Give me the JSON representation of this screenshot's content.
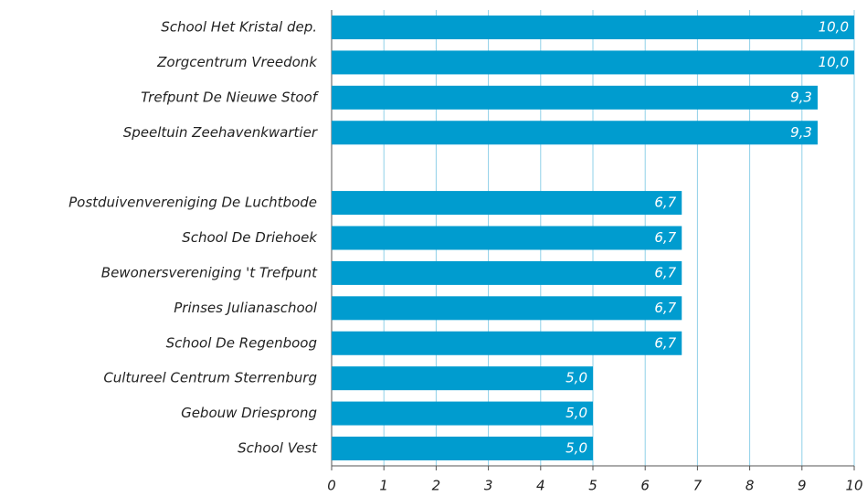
{
  "chart_data": {
    "type": "barh",
    "categories": [
      "School Het Kristal dep.",
      "Zorgcentrum Vreedonk",
      "Trefpunt De Nieuwe Stoof",
      "Speeltuin Zeehavenkwartier",
      null,
      "Postduivenvereniging De Luchtbode",
      "School De Driehoek",
      "Bewonersvereniging 't Trefpunt",
      "Prinses Julianaschool",
      "School De Regenboog",
      "Cultureel Centrum Sterrenburg",
      "Gebouw Driesprong",
      "School Vest"
    ],
    "values": [
      10,
      10,
      9.3,
      9.3,
      null,
      6.7,
      6.7,
      6.7,
      6.7,
      6.7,
      5,
      5,
      5
    ],
    "value_labels": [
      "10,0",
      "10,0",
      "9,3",
      "9,3",
      null,
      "6,7",
      "6,7",
      "6,7",
      "6,7",
      "6,7",
      "5,0",
      "5,0",
      "5,0"
    ],
    "color": "#009ccf",
    "xlim": [
      0,
      10
    ],
    "xticks": [
      0,
      1,
      2,
      3,
      4,
      5,
      6,
      7,
      8,
      9,
      10
    ],
    "grid": true
  }
}
